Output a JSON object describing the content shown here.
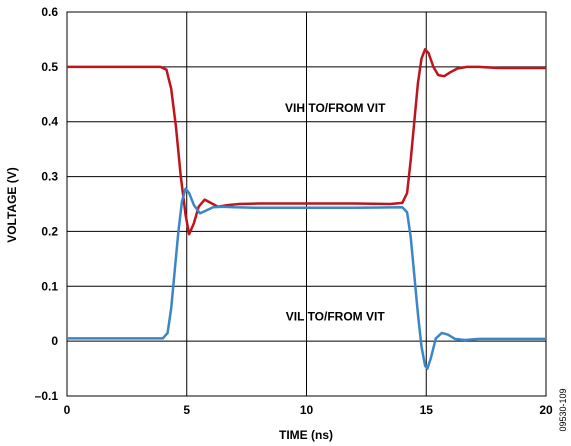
{
  "chart_data": {
    "type": "line",
    "xlabel": "TIME (ns)",
    "ylabel": "VOLTAGE (V)",
    "xlim": [
      0,
      20
    ],
    "ylim": [
      -0.1,
      0.6
    ],
    "x_ticks": [
      0,
      5,
      10,
      15,
      20
    ],
    "y_ticks": [
      -0.1,
      0,
      0.1,
      0.2,
      0.3,
      0.4,
      0.5,
      0.6
    ],
    "y_tick_labels": [
      "–0.1",
      "0",
      "0.1",
      "0.2",
      "0.3",
      "0.4",
      "0.5",
      "0.6"
    ],
    "grid": true,
    "series": [
      {
        "color": "#c0141c",
        "x": [
          0,
          3.9,
          4.15,
          4.35,
          4.55,
          4.75,
          4.95,
          5.1,
          5.3,
          5.5,
          5.75,
          6.0,
          6.3,
          6.7,
          7.2,
          8,
          10,
          12,
          13.5,
          14.0,
          14.2,
          14.35,
          14.5,
          14.65,
          14.8,
          14.95,
          15.1,
          15.3,
          15.5,
          15.75,
          16.0,
          16.3,
          16.7,
          17.2,
          18,
          20
        ],
        "y": [
          0.5,
          0.5,
          0.495,
          0.46,
          0.39,
          0.3,
          0.23,
          0.195,
          0.215,
          0.245,
          0.258,
          0.252,
          0.245,
          0.248,
          0.25,
          0.251,
          0.251,
          0.251,
          0.25,
          0.252,
          0.27,
          0.33,
          0.4,
          0.47,
          0.515,
          0.532,
          0.525,
          0.5,
          0.485,
          0.483,
          0.49,
          0.497,
          0.5,
          0.5,
          0.498,
          0.498
        ]
      },
      {
        "color": "#3c85c6",
        "x": [
          0,
          4.0,
          4.2,
          4.35,
          4.5,
          4.65,
          4.8,
          4.95,
          5.1,
          5.3,
          5.55,
          5.8,
          6.1,
          6.5,
          7.0,
          8,
          10,
          12,
          14.0,
          14.2,
          14.35,
          14.5,
          14.65,
          14.8,
          14.95,
          15.05,
          15.2,
          15.4,
          15.65,
          15.9,
          16.2,
          16.6,
          17.2,
          18,
          20
        ],
        "y": [
          0.005,
          0.005,
          0.015,
          0.06,
          0.13,
          0.2,
          0.255,
          0.278,
          0.27,
          0.248,
          0.233,
          0.238,
          0.244,
          0.245,
          0.244,
          0.243,
          0.243,
          0.243,
          0.244,
          0.235,
          0.19,
          0.12,
          0.05,
          -0.01,
          -0.045,
          -0.05,
          -0.03,
          0.005,
          0.015,
          0.012,
          0.004,
          0.002,
          0.004,
          0.004,
          0.004
        ]
      }
    ],
    "annotations": [
      {
        "text": "VIH TO/FROM VIT",
        "x": 11.2,
        "y": 0.425
      },
      {
        "text": "VIL TO/FROM VIT",
        "x": 11.2,
        "y": 0.045
      }
    ],
    "figure_id": "09530-109"
  }
}
